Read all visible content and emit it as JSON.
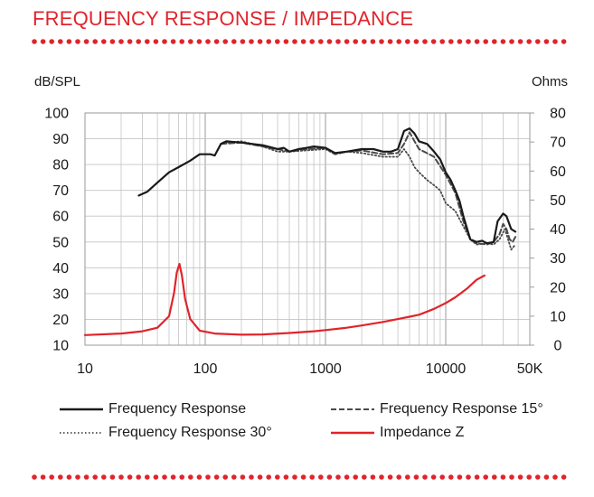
{
  "title": "FREQUENCY RESPONSE / IMPEDANCE",
  "colors": {
    "accent": "#e0242b",
    "grid": "#bdbdbd",
    "line": "#1a1a1a",
    "impedance": "#e0242b"
  },
  "chart_data": {
    "type": "line",
    "title": "FREQUENCY RESPONSE / IMPEDANCE",
    "x_scale": "log",
    "xlim": [
      10,
      50000
    ],
    "ylim_left": [
      10,
      100
    ],
    "ylim_right": [
      0,
      80
    ],
    "ylabel_left": "dB/SPL",
    "ylabel_right": "Ohms",
    "x_ticks": [
      {
        "value": 10,
        "label": "10"
      },
      {
        "value": 100,
        "label": "100"
      },
      {
        "value": 1000,
        "label": "1000"
      },
      {
        "value": 10000,
        "label": "10000"
      },
      {
        "value": 50000,
        "label": "50K"
      }
    ],
    "y_left_ticks": [
      10,
      20,
      30,
      40,
      50,
      60,
      70,
      80,
      90,
      100
    ],
    "y_right_ticks": [
      0,
      10,
      20,
      30,
      40,
      50,
      60,
      70,
      80
    ],
    "grid": true,
    "legend_position": "bottom",
    "series": [
      {
        "name": "Frequency Response",
        "axis": "left",
        "style": "solid",
        "color": "#1a1a1a",
        "width": 2.2,
        "points": [
          [
            28,
            68
          ],
          [
            33,
            69.5
          ],
          [
            40,
            73
          ],
          [
            50,
            77
          ],
          [
            60,
            79
          ],
          [
            75,
            81.5
          ],
          [
            90,
            84
          ],
          [
            110,
            84
          ],
          [
            120,
            83.5
          ],
          [
            135,
            88
          ],
          [
            150,
            89
          ],
          [
            200,
            88.5
          ],
          [
            300,
            87.5
          ],
          [
            400,
            86
          ],
          [
            450,
            86.5
          ],
          [
            500,
            85
          ],
          [
            600,
            86
          ],
          [
            700,
            86.5
          ],
          [
            800,
            87
          ],
          [
            1000,
            86.5
          ],
          [
            1200,
            84.5
          ],
          [
            1500,
            85
          ],
          [
            2000,
            86
          ],
          [
            2500,
            86
          ],
          [
            3000,
            85
          ],
          [
            3500,
            85
          ],
          [
            4000,
            86
          ],
          [
            4500,
            93
          ],
          [
            5000,
            94
          ],
          [
            5500,
            92
          ],
          [
            6000,
            89
          ],
          [
            7000,
            88
          ],
          [
            8000,
            85
          ],
          [
            9000,
            82
          ],
          [
            10000,
            77
          ],
          [
            11000,
            74
          ],
          [
            12000,
            70
          ],
          [
            13000,
            66
          ],
          [
            14000,
            60
          ],
          [
            16000,
            51
          ],
          [
            18000,
            50
          ],
          [
            20000,
            50.5
          ],
          [
            22000,
            49.5
          ],
          [
            25000,
            50
          ],
          [
            27000,
            58
          ],
          [
            30000,
            61
          ],
          [
            32000,
            60
          ],
          [
            35000,
            55
          ],
          [
            38000,
            54
          ]
        ]
      },
      {
        "name": "Frequency Response 15°",
        "axis": "left",
        "style": "dashed",
        "color": "#4a4a4a",
        "width": 2,
        "points": [
          [
            135,
            88
          ],
          [
            200,
            88.5
          ],
          [
            300,
            87
          ],
          [
            400,
            86
          ],
          [
            500,
            85
          ],
          [
            700,
            86
          ],
          [
            1000,
            86.5
          ],
          [
            1200,
            84
          ],
          [
            1500,
            85
          ],
          [
            2000,
            85.5
          ],
          [
            3000,
            84
          ],
          [
            4000,
            84.5
          ],
          [
            4500,
            88
          ],
          [
            5000,
            92.5
          ],
          [
            5500,
            89
          ],
          [
            6000,
            86
          ],
          [
            8000,
            83
          ],
          [
            10000,
            76
          ],
          [
            12000,
            69
          ],
          [
            14000,
            58
          ],
          [
            16000,
            51
          ],
          [
            18000,
            49.5
          ],
          [
            22000,
            49
          ],
          [
            25000,
            50
          ],
          [
            28000,
            53
          ],
          [
            30000,
            57
          ],
          [
            32000,
            55
          ],
          [
            34000,
            51
          ],
          [
            36000,
            50
          ],
          [
            38000,
            52
          ]
        ]
      },
      {
        "name": "Frequency Response 30°",
        "axis": "left",
        "style": "dotted",
        "color": "#4a4a4a",
        "width": 1.8,
        "points": [
          [
            140,
            88.5
          ],
          [
            200,
            89
          ],
          [
            300,
            87
          ],
          [
            400,
            85
          ],
          [
            500,
            85
          ],
          [
            700,
            85.5
          ],
          [
            1000,
            86
          ],
          [
            1200,
            84
          ],
          [
            1500,
            85
          ],
          [
            2000,
            84.5
          ],
          [
            3000,
            83
          ],
          [
            4000,
            83
          ],
          [
            4500,
            86
          ],
          [
            5000,
            83
          ],
          [
            5500,
            79
          ],
          [
            6000,
            77
          ],
          [
            7000,
            74
          ],
          [
            8000,
            72
          ],
          [
            9000,
            70
          ],
          [
            10000,
            65
          ],
          [
            12000,
            62
          ],
          [
            14000,
            56
          ],
          [
            16000,
            51
          ],
          [
            18000,
            49
          ],
          [
            22000,
            49.5
          ],
          [
            25000,
            49
          ],
          [
            28000,
            51
          ],
          [
            31000,
            55
          ],
          [
            33000,
            51
          ],
          [
            35000,
            47
          ],
          [
            38000,
            49
          ]
        ]
      },
      {
        "name": "Impedance Z",
        "axis": "right",
        "style": "solid",
        "color": "#e0242b",
        "width": 2.2,
        "points": [
          [
            10,
            3.5
          ],
          [
            20,
            4
          ],
          [
            30,
            4.8
          ],
          [
            40,
            6
          ],
          [
            50,
            10
          ],
          [
            55,
            18
          ],
          [
            58,
            25
          ],
          [
            61,
            28
          ],
          [
            64,
            24
          ],
          [
            68,
            16
          ],
          [
            75,
            9
          ],
          [
            90,
            5
          ],
          [
            120,
            4
          ],
          [
            200,
            3.6
          ],
          [
            300,
            3.7
          ],
          [
            500,
            4.2
          ],
          [
            800,
            4.8
          ],
          [
            1000,
            5.2
          ],
          [
            1500,
            6
          ],
          [
            2000,
            6.8
          ],
          [
            3000,
            8
          ],
          [
            4000,
            9
          ],
          [
            5000,
            9.8
          ],
          [
            6000,
            10.5
          ],
          [
            8000,
            12.5
          ],
          [
            10000,
            14.5
          ],
          [
            12000,
            16.5
          ],
          [
            15000,
            19.5
          ],
          [
            18000,
            22.5
          ],
          [
            21000,
            24
          ]
        ]
      }
    ],
    "legend": [
      {
        "label": "Frequency Response",
        "style": "solid",
        "color": "#1a1a1a"
      },
      {
        "label": "Frequency Response 15°",
        "style": "dashed",
        "color": "#4a4a4a"
      },
      {
        "label": "Frequency Response 30°",
        "style": "dotted",
        "color": "#4a4a4a"
      },
      {
        "label": "Impedance Z",
        "style": "solid",
        "color": "#e0242b"
      }
    ]
  }
}
